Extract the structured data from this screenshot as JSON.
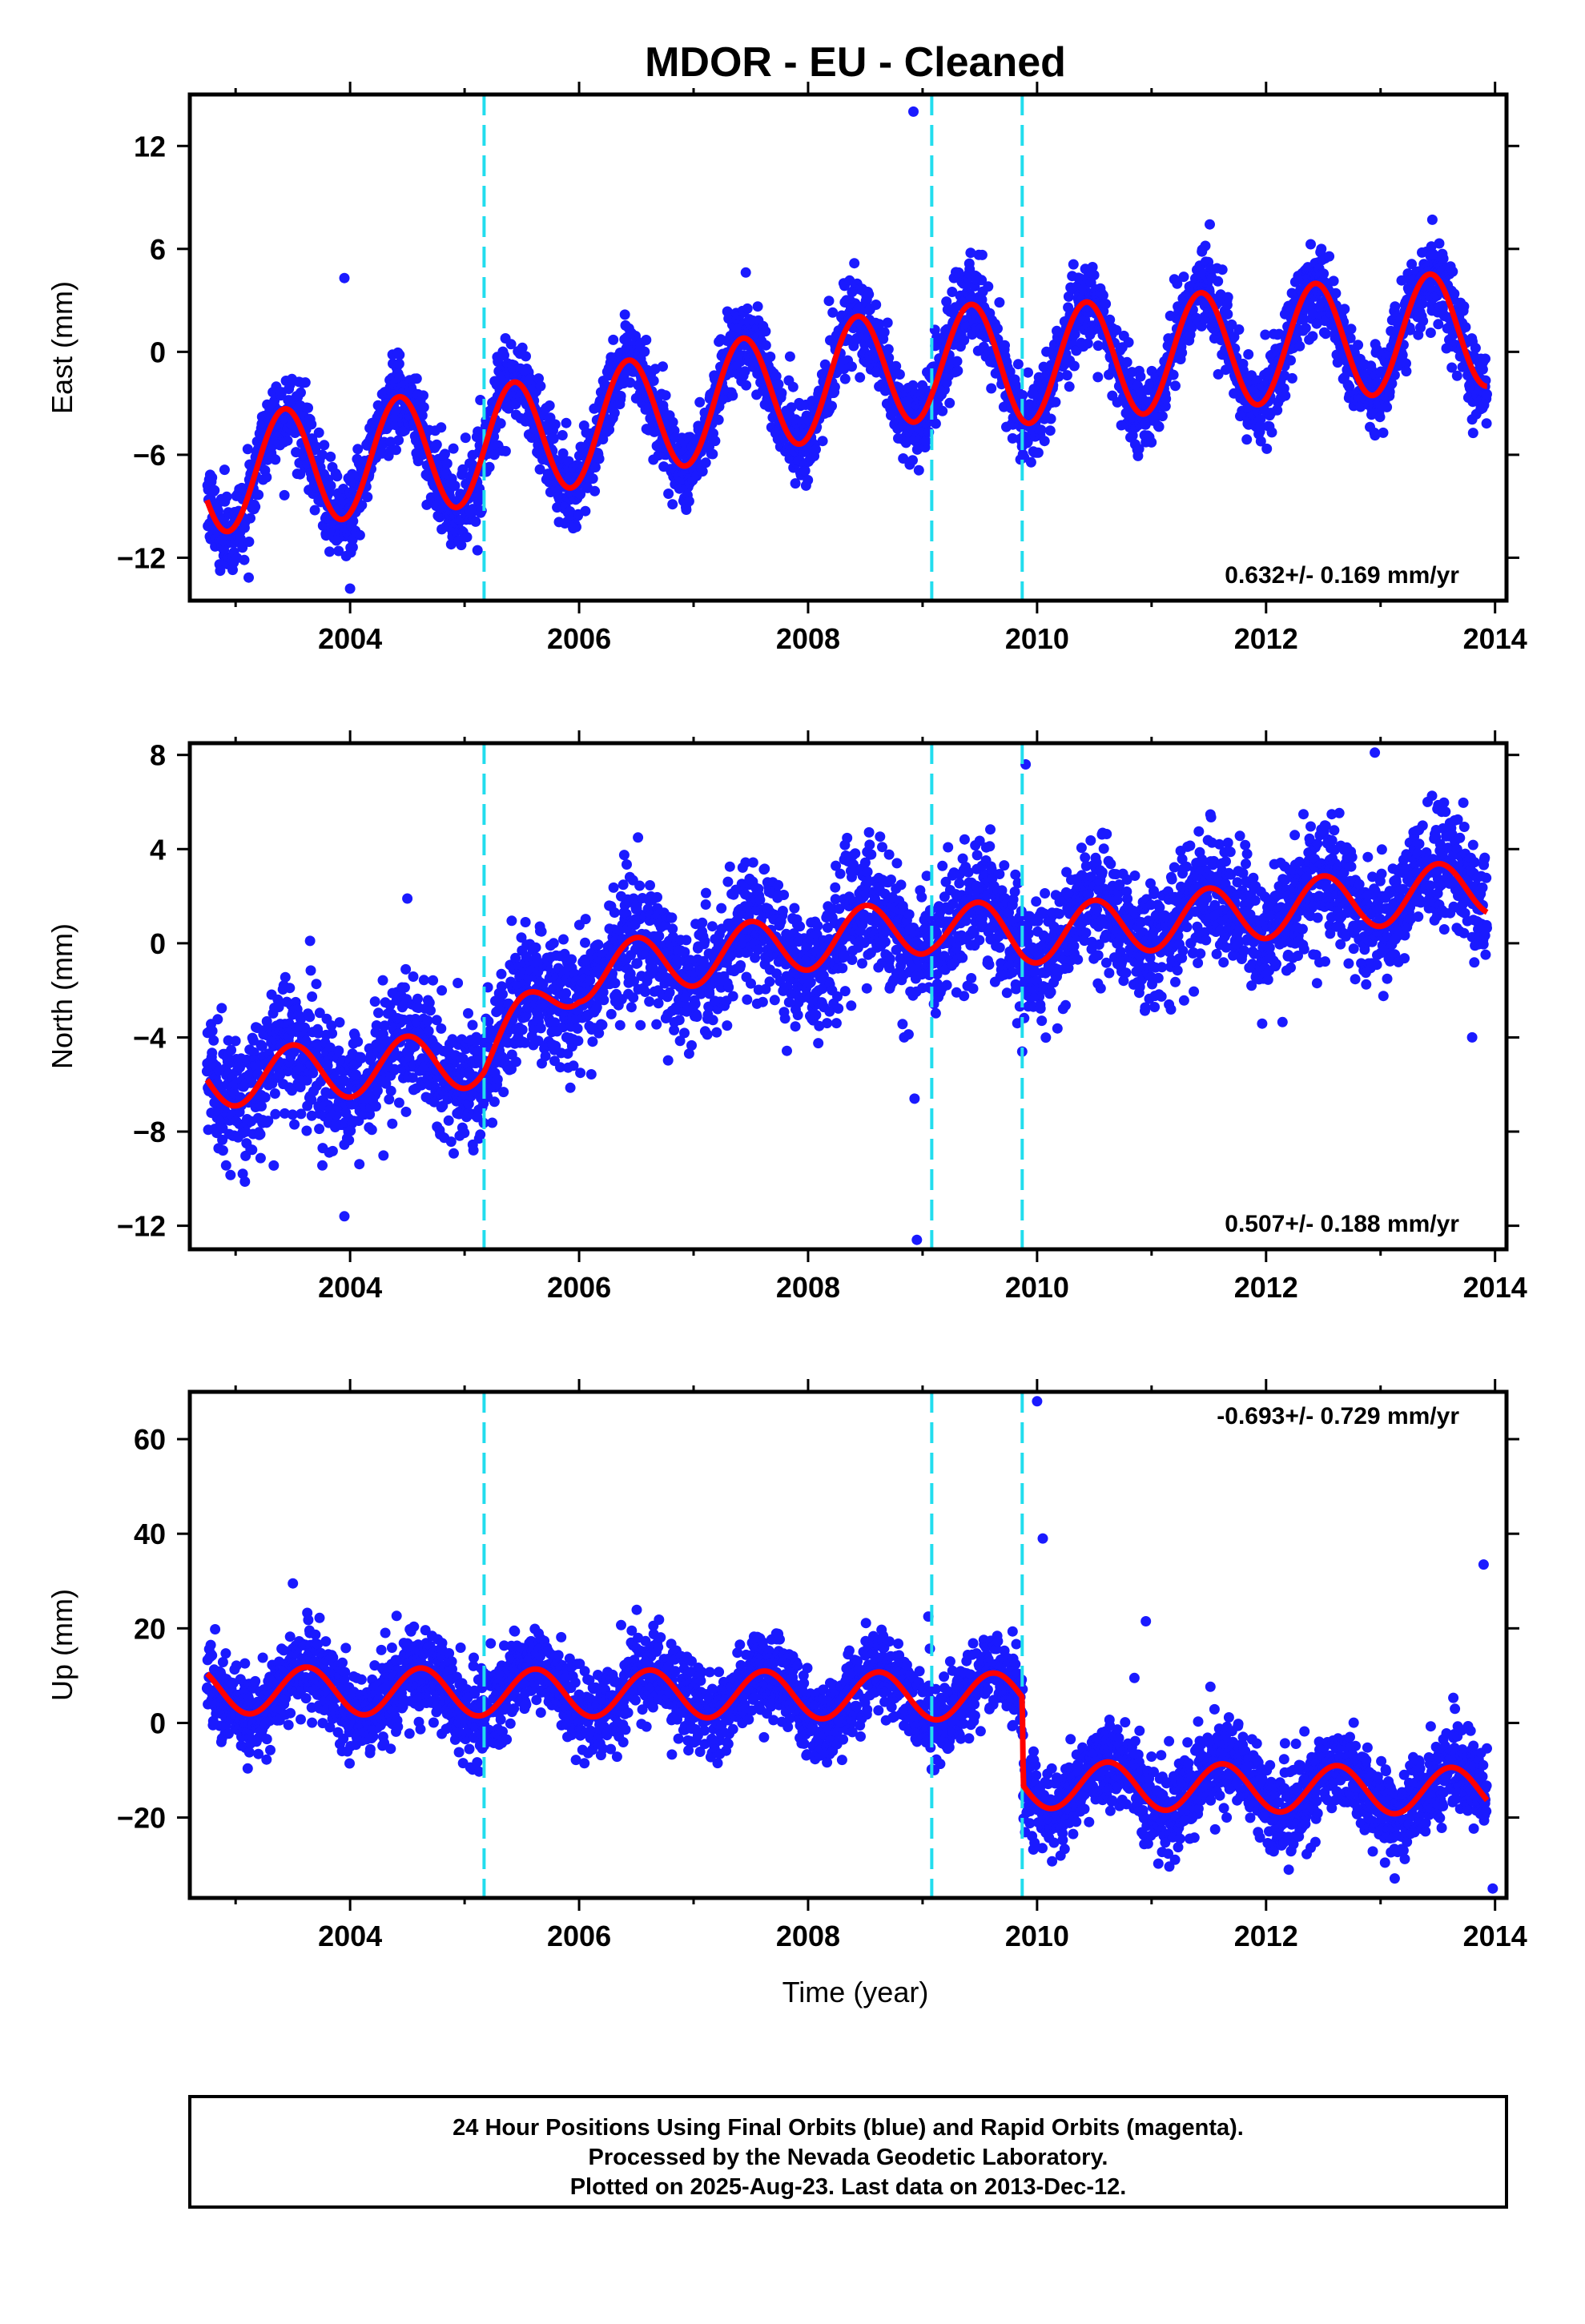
{
  "title": "MDOR  - EU - Cleaned",
  "xlabel": "Time (year)",
  "footer": {
    "lines": [
      "24 Hour Positions Using Final Orbits (blue) and Rapid Orbits (magenta).",
      "Processed by the Nevada Geodetic Laboratory.",
      "Plotted on 2025-Aug-23. Last data on 2013-Dec-12."
    ]
  },
  "colors": {
    "data_points": "#1a1aff",
    "model_line": "#ff0000",
    "break_lines": "#22ddee",
    "frame": "#000000"
  },
  "chart_data": [
    {
      "type": "scatter",
      "component": "east",
      "ylabel": "East (mm)",
      "rate_text": "0.632+/- 0.169 mm/yr",
      "xlim": [
        2002.6,
        2014.1
      ],
      "ylim": [
        -14.5,
        15
      ],
      "xticks": [
        "2004",
        "2006",
        "2008",
        "2010",
        "2012",
        "2014"
      ],
      "yticks": [
        "12",
        "6",
        "0",
        "-6",
        "-12"
      ],
      "offset_epochs": [
        2005.17,
        2009.08,
        2009.87
      ],
      "model": {
        "start": 2002.75,
        "end": 2013.93,
        "knots": [
          [
            2002.75,
            -7.2
          ],
          [
            2005.17,
            -5.5
          ],
          [
            2009.08,
            -0.5
          ],
          [
            2009.87,
            -0.8
          ],
          [
            2013.93,
            1.4
          ]
        ],
        "amplitude": 3.4,
        "peak_phase": 0.43
      },
      "scatter_sigma": 1.2,
      "outliers": [
        [
          2008.92,
          14
        ],
        [
          2003.95,
          4.3
        ],
        [
          2003.88,
          -11
        ],
        [
          2004.0,
          -13.8
        ],
        [
          2005.02,
          -10.8
        ]
      ]
    },
    {
      "type": "scatter",
      "component": "north",
      "ylabel": "North (mm)",
      "rate_text": "0.507+/- 0.188 mm/yr",
      "xlim": [
        2002.6,
        2014.1
      ],
      "ylim": [
        -13,
        8.5
      ],
      "xticks": [
        "2004",
        "2006",
        "2008",
        "2010",
        "2012",
        "2014"
      ],
      "yticks": [
        "8",
        "4",
        "0",
        "-4",
        "-8",
        "-12"
      ],
      "offset_epochs": [
        2005.17,
        2009.08,
        2009.87
      ],
      "model": {
        "start": 2002.75,
        "end": 2013.93,
        "knots": [
          [
            2002.75,
            -5.8
          ],
          [
            2005.17,
            -4.9
          ],
          [
            2006.0,
            -1.3
          ],
          [
            2009.08,
            0.8
          ],
          [
            2009.87,
            0.3
          ],
          [
            2013.93,
            2.4
          ]
        ],
        "amplitude": 1.2,
        "peak_phase": 0.5
      },
      "scatter_sigma": 1.3,
      "outliers": [
        [
          2009.9,
          7.6
        ],
        [
          2012.95,
          8.1
        ],
        [
          2008.95,
          -12.6
        ],
        [
          2003.95,
          -11.6
        ],
        [
          2009.87,
          -4.6
        ],
        [
          2008.93,
          -6.6
        ],
        [
          2013.8,
          -4
        ],
        [
          2004.5,
          1.9
        ],
        [
          2003.65,
          0.1
        ]
      ]
    },
    {
      "type": "scatter",
      "component": "up",
      "ylabel": "Up (mm)",
      "rate_text": "-0.693+/- 0.729 mm/yr",
      "xlim": [
        2002.6,
        2014.1
      ],
      "ylim": [
        -37,
        70
      ],
      "xticks": [
        "2004",
        "2006",
        "2008",
        "2010",
        "2012",
        "2014"
      ],
      "yticks": [
        "60",
        "40",
        "20",
        "0",
        "-20"
      ],
      "offset_epochs": [
        2005.17,
        2009.08,
        2009.87
      ],
      "model": {
        "start": 2002.75,
        "end": 2013.93,
        "knots": [
          [
            2002.75,
            7
          ],
          [
            2009.87,
            5.5
          ],
          [
            2009.88,
            -13
          ],
          [
            2013.93,
            -14.5
          ]
        ],
        "amplitude": 5,
        "peak_phase": 0.62
      },
      "scatter_sigma": 4.5,
      "outliers": [
        [
          2010.0,
          68
        ],
        [
          2010.05,
          39
        ],
        [
          2013.9,
          33.5
        ],
        [
          2010.95,
          21.5
        ],
        [
          2010.85,
          9.5
        ],
        [
          2013.98,
          -35
        ],
        [
          2009.05,
          22.5
        ],
        [
          2003.5,
          29.5
        ]
      ]
    }
  ]
}
